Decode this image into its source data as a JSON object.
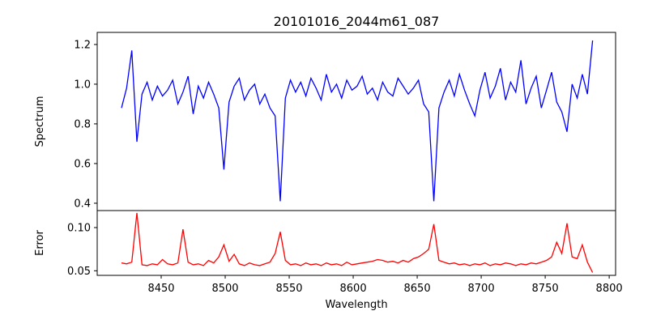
{
  "chart_data": {
    "type": "line",
    "title": "20101016_2044m61_087",
    "xlabel": "Wavelength",
    "xlim": [
      8400,
      8805
    ],
    "x_ticks": [
      8450,
      8500,
      8550,
      8600,
      8650,
      8700,
      8750,
      8800
    ],
    "x_tick_labels": [
      "8450",
      "8500",
      "8550",
      "8600",
      "8650",
      "8700",
      "8750",
      "8800"
    ],
    "x_start": 8419,
    "x_step": 4,
    "panels": [
      {
        "name": "spectrum",
        "ylabel": "Spectrum",
        "ylim": [
          0.363,
          1.261
        ],
        "y_ticks": [
          0.4,
          0.6,
          0.8,
          1.0,
          1.2
        ],
        "y_tick_labels": [
          "0.4",
          "0.6",
          "0.8",
          "1.0",
          "1.2"
        ],
        "color": "#0000ff",
        "values": [
          0.88,
          0.98,
          1.17,
          0.71,
          0.95,
          1.01,
          0.92,
          0.99,
          0.94,
          0.97,
          1.02,
          0.9,
          0.96,
          1.04,
          0.85,
          0.99,
          0.93,
          1.01,
          0.95,
          0.88,
          0.57,
          0.91,
          0.99,
          1.03,
          0.92,
          0.97,
          1.0,
          0.9,
          0.95,
          0.88,
          0.84,
          0.41,
          0.93,
          1.02,
          0.96,
          1.01,
          0.94,
          1.03,
          0.98,
          0.92,
          1.05,
          0.96,
          1.0,
          0.93,
          1.02,
          0.97,
          0.99,
          1.04,
          0.95,
          0.98,
          0.92,
          1.01,
          0.96,
          0.94,
          1.03,
          0.99,
          0.95,
          0.98,
          1.02,
          0.9,
          0.86,
          0.41,
          0.88,
          0.96,
          1.02,
          0.94,
          1.05,
          0.97,
          0.9,
          0.84,
          0.97,
          1.06,
          0.93,
          0.99,
          1.08,
          0.92,
          1.01,
          0.96,
          1.12,
          0.9,
          0.98,
          1.04,
          0.88,
          0.97,
          1.06,
          0.91,
          0.86,
          0.76,
          1.0,
          0.93,
          1.05,
          0.95,
          1.22
        ]
      },
      {
        "name": "error",
        "ylabel": "Error",
        "ylim": [
          0.0447,
          0.1197
        ],
        "y_ticks": [
          0.05,
          0.1
        ],
        "y_tick_labels": [
          "0.05",
          "0.10"
        ],
        "color": "#ff0000",
        "values": [
          0.059,
          0.058,
          0.06,
          0.117,
          0.057,
          0.056,
          0.058,
          0.057,
          0.063,
          0.058,
          0.057,
          0.059,
          0.098,
          0.06,
          0.057,
          0.058,
          0.056,
          0.062,
          0.059,
          0.066,
          0.08,
          0.061,
          0.069,
          0.058,
          0.056,
          0.059,
          0.057,
          0.056,
          0.058,
          0.06,
          0.07,
          0.095,
          0.062,
          0.057,
          0.058,
          0.056,
          0.059,
          0.057,
          0.058,
          0.056,
          0.059,
          0.057,
          0.058,
          0.056,
          0.06,
          0.057,
          0.058,
          0.059,
          0.06,
          0.061,
          0.063,
          0.062,
          0.06,
          0.061,
          0.059,
          0.062,
          0.06,
          0.064,
          0.066,
          0.07,
          0.075,
          0.104,
          0.062,
          0.06,
          0.058,
          0.059,
          0.057,
          0.058,
          0.056,
          0.058,
          0.057,
          0.059,
          0.056,
          0.058,
          0.057,
          0.059,
          0.058,
          0.056,
          0.058,
          0.057,
          0.059,
          0.058,
          0.06,
          0.062,
          0.066,
          0.083,
          0.07,
          0.105,
          0.066,
          0.064,
          0.08,
          0.06,
          0.048
        ]
      }
    ]
  }
}
